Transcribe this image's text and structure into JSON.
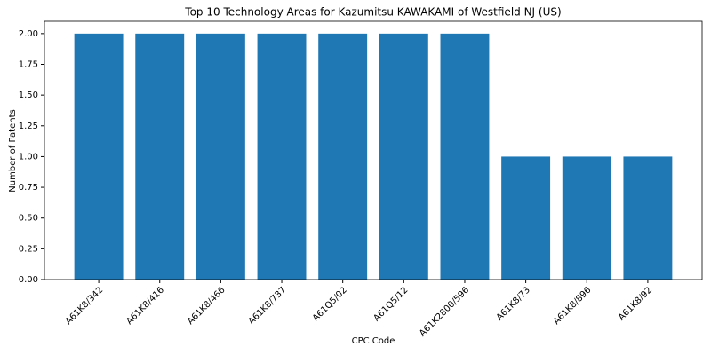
{
  "chart_data": {
    "type": "bar",
    "title": "Top 10 Technology Areas for Kazumitsu KAWAKAMI of Westfield NJ (US)",
    "x_label": "CPC Code",
    "y_label": "Number of Patents",
    "categories": [
      "A61K8/342",
      "A61K8/416",
      "A61K8/466",
      "A61K8/737",
      "A61Q5/02",
      "A61Q5/12",
      "A61K2800/596",
      "A61K8/73",
      "A61K8/896",
      "A61K8/92"
    ],
    "values": [
      2,
      2,
      2,
      2,
      2,
      2,
      2,
      1,
      1,
      1
    ],
    "color": "#1f77b4",
    "ylim": [
      0,
      2.1
    ],
    "yticks": [
      {
        "value": 0,
        "label": "0.00"
      },
      {
        "value": 0.25,
        "label": "0.25"
      },
      {
        "value": 0.5,
        "label": "0.50"
      },
      {
        "value": 0.75,
        "label": "0.75"
      },
      {
        "value": 1,
        "label": "1.00"
      },
      {
        "value": 1.25,
        "label": "1.25"
      },
      {
        "value": 1.5,
        "label": "1.50"
      },
      {
        "value": 1.75,
        "label": "1.75"
      },
      {
        "value": 2,
        "label": "2.00"
      }
    ]
  }
}
